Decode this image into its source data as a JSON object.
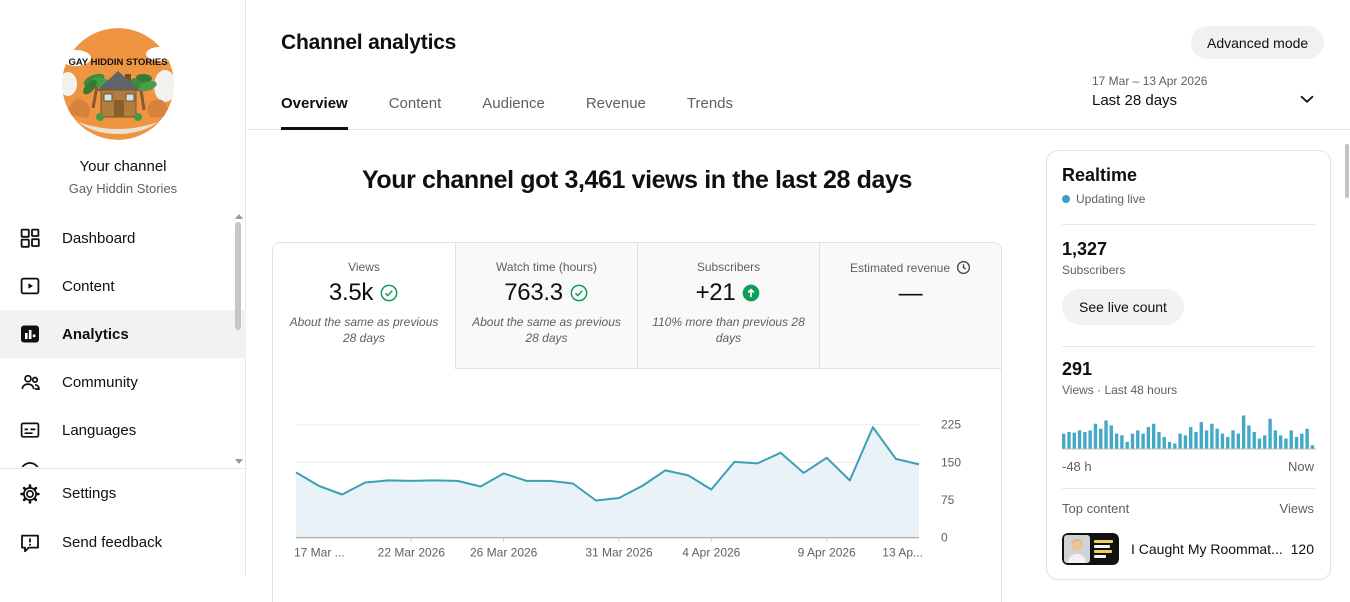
{
  "colors": {
    "accent_teal": "#3aa0b5",
    "accent_teal_fill": "#e9f3f7",
    "bar_teal": "#44a8c7",
    "positive_green": "#0f9d58",
    "text_primary": "#0f0f0f",
    "text_secondary": "#606060",
    "live_dot": "#3ba0c4"
  },
  "sidebar": {
    "avatar_text": "GAY HIDDIN STORIES",
    "channel_label": "Your channel",
    "channel_name": "Gay Hiddin Stories",
    "items": [
      {
        "label": "Dashboard"
      },
      {
        "label": "Content"
      },
      {
        "label": "Analytics"
      },
      {
        "label": "Community"
      },
      {
        "label": "Languages"
      }
    ],
    "footer_items": [
      {
        "label": "Settings"
      },
      {
        "label": "Send feedback"
      }
    ]
  },
  "header": {
    "title": "Channel analytics",
    "tabs": [
      {
        "label": "Overview"
      },
      {
        "label": "Content"
      },
      {
        "label": "Audience"
      },
      {
        "label": "Revenue"
      },
      {
        "label": "Trends"
      }
    ],
    "advanced_mode_label": "Advanced mode",
    "date_range": "17 Mar – 13 Apr 2026",
    "date_preset": "Last 28 days"
  },
  "overview": {
    "headline": "Your channel got 3,461 views in the last 28 days",
    "metric_cards": [
      {
        "label": "Views",
        "value": "3.5k",
        "note": "About the same as previous 28 days"
      },
      {
        "label": "Watch time (hours)",
        "value": "763.3",
        "note": "About the same as previous 28 days"
      },
      {
        "label": "Subscribers",
        "value": "+21",
        "note": "110% more than previous 28 days"
      },
      {
        "label": "Estimated revenue",
        "value": "—",
        "note": ""
      }
    ]
  },
  "realtime": {
    "title": "Realtime",
    "status": "Updating live",
    "subscribers_value": "1,327",
    "subscribers_label": "Subscribers",
    "live_count_button": "See live count",
    "views_value": "291",
    "views_label": "Views · Last 48 hours",
    "axis_left": "-48 h",
    "axis_right": "Now",
    "top_content_label": "Top content",
    "views_col_label": "Views",
    "top_video": {
      "title": "I Caught My Roommat...",
      "views": "120"
    }
  },
  "chart_data": [
    {
      "type": "line",
      "title": "Daily views, last 28 days",
      "x_start": "17 Mar 2026",
      "x_end": "13 Apr 2026",
      "x_tick_labels": [
        "17 Mar ...",
        "22 Mar 2026",
        "26 Mar 2026",
        "31 Mar 2026",
        "4 Apr 2026",
        "9 Apr 2026",
        "13 Ap..."
      ],
      "x_tick_indices": [
        0,
        5,
        9,
        14,
        18,
        23,
        27
      ],
      "y_ticks": [
        0,
        75,
        150,
        225
      ],
      "ylim": [
        0,
        336
      ],
      "grid": true,
      "legend": false,
      "ylabel": "Views",
      "values": [
        130,
        103,
        86,
        110,
        114,
        113,
        114,
        113,
        102,
        128,
        113,
        113,
        108,
        74,
        79,
        103,
        134,
        124,
        96,
        151,
        148,
        169,
        129,
        159,
        114,
        220,
        157,
        146
      ]
    },
    {
      "type": "bar",
      "title": "Views · Last 48 hours (hourly, relative height % of max)",
      "x_start_label": "-48 h",
      "x_end_label": "Now",
      "grid": false,
      "legend": false,
      "values": [
        45,
        50,
        48,
        55,
        50,
        55,
        75,
        60,
        85,
        70,
        45,
        40,
        20,
        45,
        55,
        45,
        65,
        75,
        50,
        35,
        20,
        15,
        45,
        40,
        65,
        50,
        80,
        55,
        75,
        60,
        45,
        35,
        55,
        45,
        100,
        70,
        50,
        30,
        40,
        90,
        55,
        40,
        30,
        55,
        35,
        45,
        60,
        10
      ]
    }
  ]
}
